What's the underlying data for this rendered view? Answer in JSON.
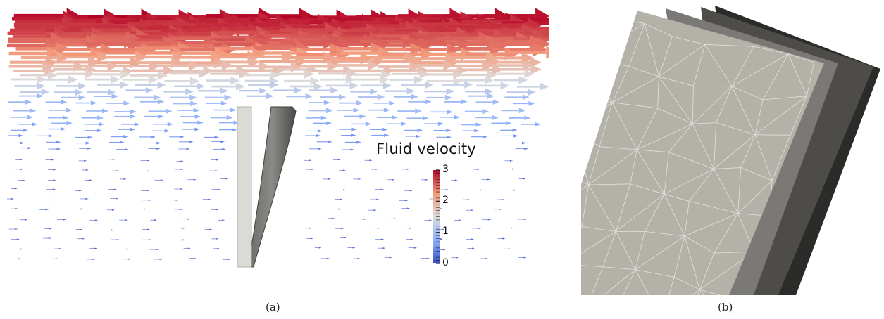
{
  "figure": {
    "panel_a": {
      "caption": "(a)",
      "legend_title": "Fluid velocity",
      "colorbar": {
        "min": 0,
        "max": 3,
        "ticks": [
          {
            "value": 3,
            "label": "3"
          },
          {
            "value": 2,
            "label": "2"
          },
          {
            "value": 1,
            "label": "1"
          },
          {
            "value": 0,
            "label": "0"
          }
        ],
        "colors": [
          "#3b4cc0",
          "#8db0fe",
          "#dddcdc",
          "#f49a7b",
          "#b40426"
        ]
      }
    },
    "panel_b": {
      "caption": "(b)",
      "layer_colors": [
        "#b4b1a9",
        "#7a7975",
        "#4d4c48",
        "#2b2b29"
      ]
    }
  }
}
